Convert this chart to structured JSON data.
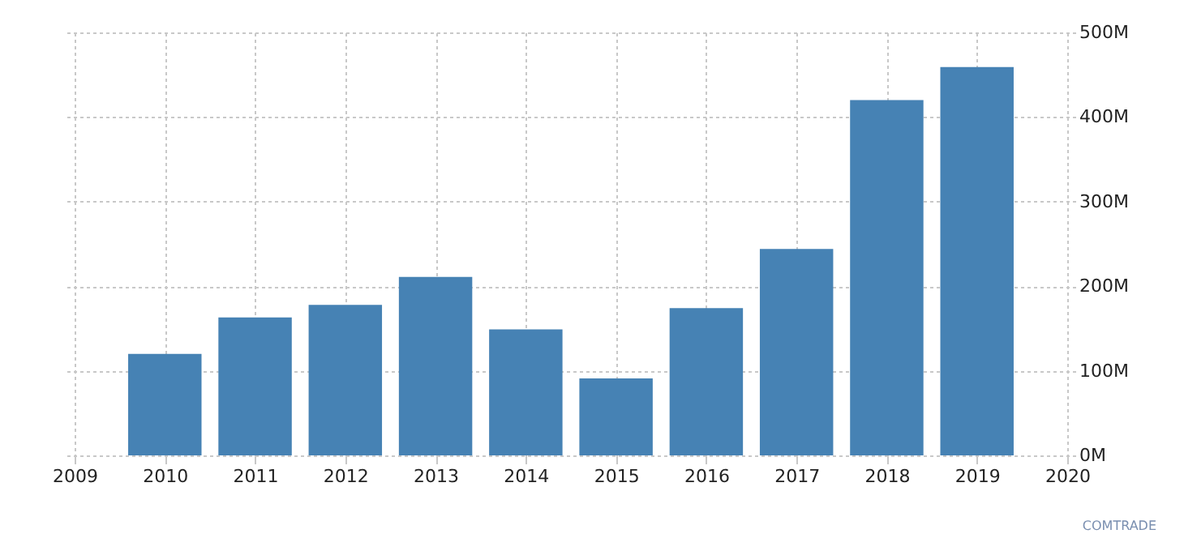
{
  "chart_data": {
    "type": "bar",
    "x": [
      2010,
      2011,
      2012,
      2013,
      2014,
      2015,
      2016,
      2017,
      2018,
      2019
    ],
    "values": [
      120,
      163,
      178,
      211,
      149,
      91,
      174,
      244,
      420,
      459
    ],
    "color": "#4682b4",
    "xlim": [
      2009,
      2020
    ],
    "xticks": [
      2009,
      2010,
      2011,
      2012,
      2013,
      2014,
      2015,
      2016,
      2017,
      2018,
      2019,
      2020
    ],
    "ylim": [
      0,
      500
    ],
    "yticks": [
      {
        "value": 0,
        "label": "0M"
      },
      {
        "value": 100,
        "label": "100M"
      },
      {
        "value": 200,
        "label": "200M"
      },
      {
        "value": 300,
        "label": "300M"
      },
      {
        "value": 400,
        "label": "400M"
      },
      {
        "value": 500,
        "label": "500M"
      }
    ],
    "grid": true,
    "annotations": [
      "COMTRADE"
    ]
  }
}
